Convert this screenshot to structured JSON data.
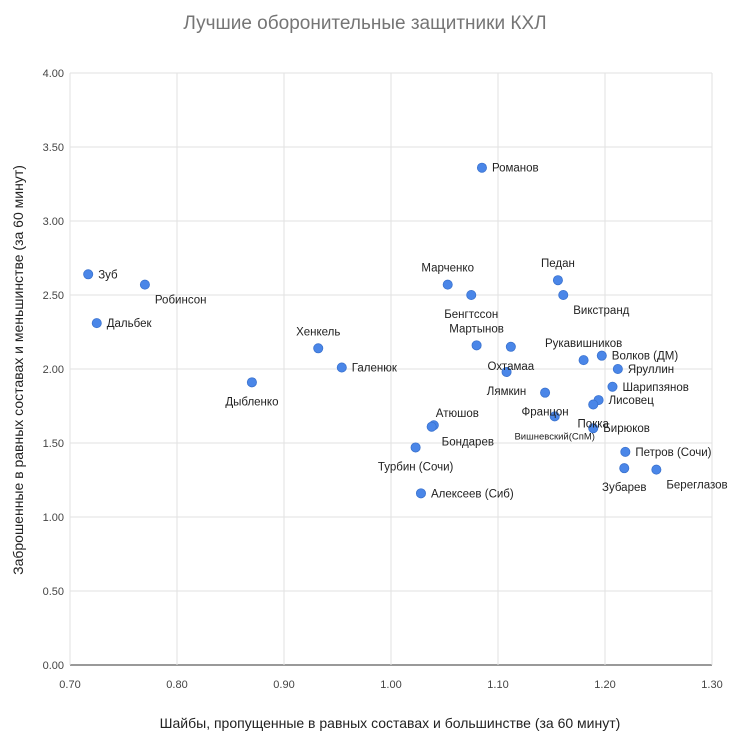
{
  "chart_data": {
    "type": "scatter",
    "title": "Лучшие оборонительные защитники КХЛ",
    "xlabel": "Шайбы, пропущенные в равных составах и большинстве (за 60 минут)",
    "ylabel": "Заброшенные в равных составах и меньшинстве (за 60 минут)",
    "xlim": [
      0.7,
      1.3
    ],
    "ylim": [
      0.0,
      4.0
    ],
    "x_ticks": [
      "0.70",
      "0.80",
      "0.90",
      "1.00",
      "1.10",
      "1.20",
      "1.30"
    ],
    "y_ticks": [
      "0.00",
      "0.50",
      "1.00",
      "1.50",
      "2.00",
      "2.50",
      "3.00",
      "3.50",
      "4.00"
    ],
    "grid": true,
    "point_color": "#4a86e8",
    "points": [
      {
        "name": "Зуб",
        "x": 0.717,
        "y": 2.64,
        "pos": "right"
      },
      {
        "name": "Робинсон",
        "x": 0.77,
        "y": 2.57,
        "pos": "below-right"
      },
      {
        "name": "Дальбек",
        "x": 0.725,
        "y": 2.31,
        "pos": "right"
      },
      {
        "name": "Дыбленко",
        "x": 0.87,
        "y": 1.91,
        "pos": "below"
      },
      {
        "name": "Хенкель",
        "x": 0.932,
        "y": 2.14,
        "pos": "above"
      },
      {
        "name": "Галенюк",
        "x": 0.954,
        "y": 2.01,
        "pos": "right"
      },
      {
        "name": "Романов",
        "x": 1.085,
        "y": 3.36,
        "pos": "right"
      },
      {
        "name": "Марченко",
        "x": 1.053,
        "y": 2.57,
        "pos": "above"
      },
      {
        "name": "Бенгтссон",
        "x": 1.075,
        "y": 2.5,
        "pos": "below"
      },
      {
        "name": "Мартынов",
        "x": 1.08,
        "y": 2.16,
        "pos": "above"
      },
      {
        "name": "Охтамаа",
        "x": 1.112,
        "y": 2.15,
        "pos": "below"
      },
      {
        "name": "Лямкин",
        "x": 1.108,
        "y": 1.98,
        "pos": "below"
      },
      {
        "name": "Педан",
        "x": 1.156,
        "y": 2.6,
        "pos": "above"
      },
      {
        "name": "Викстранд",
        "x": 1.161,
        "y": 2.5,
        "pos": "below-right"
      },
      {
        "name": "Рукавишников",
        "x": 1.18,
        "y": 2.06,
        "pos": "above"
      },
      {
        "name": "Волков (ДМ)",
        "x": 1.197,
        "y": 2.09,
        "pos": "right"
      },
      {
        "name": "Яруллин",
        "x": 1.212,
        "y": 2.0,
        "pos": "right"
      },
      {
        "name": "Шарипзянов",
        "x": 1.207,
        "y": 1.88,
        "pos": "right"
      },
      {
        "name": "Лисовец",
        "x": 1.194,
        "y": 1.79,
        "pos": "right"
      },
      {
        "name": "Францон",
        "x": 1.144,
        "y": 1.84,
        "pos": "below"
      },
      {
        "name": "Покка",
        "x": 1.189,
        "y": 1.76,
        "pos": "below"
      },
      {
        "name": "Вишневский(СпМ)",
        "x": 1.153,
        "y": 1.68,
        "pos": "below",
        "small": true
      },
      {
        "name": "Бирюков",
        "x": 1.189,
        "y": 1.6,
        "pos": "right"
      },
      {
        "name": "Атюшов",
        "x": 1.04,
        "y": 1.62,
        "pos": "above-right"
      },
      {
        "name": "Бондарев",
        "x": 1.038,
        "y": 1.61,
        "pos": "below-right"
      },
      {
        "name": "Турбин (Сочи)",
        "x": 1.023,
        "y": 1.47,
        "pos": "below"
      },
      {
        "name": "Алексеев (Сиб)",
        "x": 1.028,
        "y": 1.16,
        "pos": "right"
      },
      {
        "name": "Петров (Сочи)",
        "x": 1.219,
        "y": 1.44,
        "pos": "right"
      },
      {
        "name": "Зубарев",
        "x": 1.218,
        "y": 1.33,
        "pos": "below"
      },
      {
        "name": "Береглазов",
        "x": 1.248,
        "y": 1.32,
        "pos": "below-right"
      }
    ]
  }
}
